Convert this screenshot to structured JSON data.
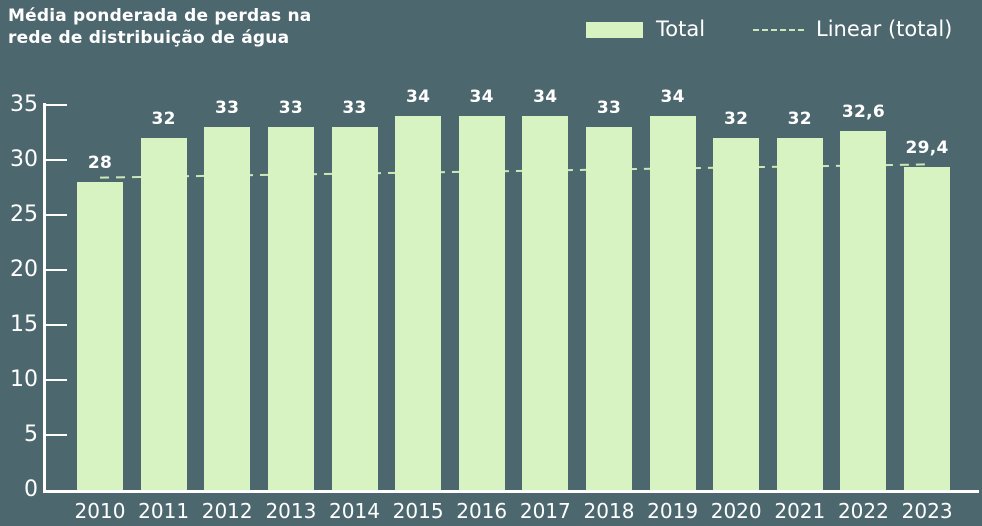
{
  "title": {
    "line1": "Média ponderada de perdas na",
    "line2": "rede de distribuição de água"
  },
  "legend": {
    "total_label": "Total",
    "linear_label": "Linear (total)"
  },
  "colors": {
    "background": "#4c676d",
    "bar": "#d8f3c2",
    "trendline": "#cde8b6",
    "text": "#ffffff"
  },
  "chart_data": {
    "type": "bar",
    "title": "Média ponderada de perdas na rede de distribuição de água",
    "categories": [
      "2010",
      "2011",
      "2012",
      "2013",
      "2014",
      "2015",
      "2016",
      "2017",
      "2018",
      "2019",
      "2020",
      "2021",
      "2022",
      "2023"
    ],
    "values": [
      28,
      32,
      33,
      33,
      33,
      34,
      34,
      34,
      33,
      34,
      32,
      32,
      32.6,
      29.4
    ],
    "value_labels": [
      "28",
      "32",
      "33",
      "33",
      "33",
      "34",
      "34",
      "34",
      "33",
      "34",
      "32",
      "32",
      "32,6",
      "29,4"
    ],
    "xlabel": "",
    "ylabel": "",
    "ylim": [
      0,
      35
    ],
    "yticks": [
      0,
      5,
      10,
      15,
      20,
      25,
      30,
      35
    ],
    "grid": false,
    "legend_entries": [
      "Total",
      "Linear (total)"
    ],
    "legend_position": "top-right",
    "series": [
      {
        "name": "Total",
        "type": "bar",
        "values": [
          28,
          32,
          33,
          33,
          33,
          34,
          34,
          34,
          33,
          34,
          32,
          32,
          32.6,
          29.4
        ]
      },
      {
        "name": "Linear (total)",
        "type": "trendline",
        "style": "dashed",
        "start_value": 28.4,
        "end_value": 29.6
      }
    ]
  }
}
